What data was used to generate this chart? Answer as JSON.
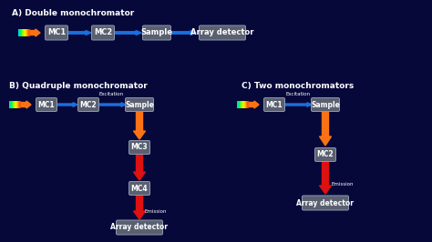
{
  "bg_color": "#07083a",
  "box_color": "#5a6070",
  "box_edge_color": "#8a9ab0",
  "text_color": "#ffffff",
  "blue_arrow_color": "#1a6fdd",
  "orange_arrow_color": "#f97316",
  "red_arrow_color": "#dd1111",
  "section_A_title": "A) Double monochromator",
  "section_B_title": "B) Quadruple monochromator",
  "section_C_title": "C) Two monochromators",
  "excitation_label": "Excitation",
  "emission_label": "Emission",
  "figw": 4.74,
  "figh": 2.66,
  "dpi": 100
}
